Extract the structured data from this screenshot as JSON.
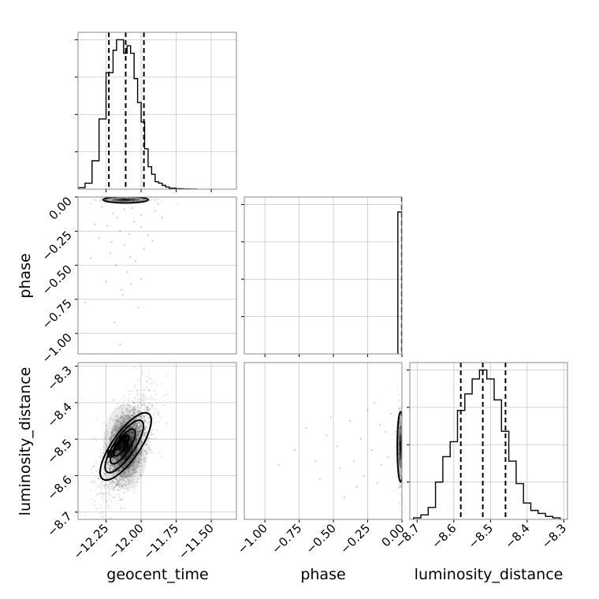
{
  "chart_data": {
    "type": "corner",
    "parameters": [
      "geocent_time",
      "phase",
      "luminosity_distance"
    ],
    "grid": true,
    "quantile_lines": "dashed",
    "panels": [
      {
        "id": "hist-geocent_time",
        "kind": "histogram",
        "x_param": "geocent_time",
        "xlim": [
          -12.45,
          -11.32
        ],
        "ylim": [
          0,
          1.05
        ],
        "bin_edges": [
          -12.45,
          -12.4,
          -12.35,
          -12.3,
          -12.25,
          -12.2,
          -12.175,
          -12.15,
          -12.125,
          -12.1,
          -12.075,
          -12.05,
          -12.025,
          -12.0,
          -11.975,
          -11.95,
          -11.925,
          -11.9,
          -11.875,
          -11.85,
          -11.825,
          -11.8,
          -11.75,
          -11.7,
          -11.65,
          -11.6
        ],
        "counts": [
          0.01,
          0.04,
          0.19,
          0.47,
          0.78,
          0.93,
          1.0,
          1.0,
          0.91,
          0.96,
          0.91,
          0.74,
          0.58,
          0.45,
          0.27,
          0.15,
          0.1,
          0.05,
          0.04,
          0.025,
          0.015,
          0.007,
          0.003,
          0.001,
          0.0
        ],
        "quantiles": [
          -12.23,
          -12.11,
          -11.98
        ],
        "xticks": [
          -12.25,
          -12.0,
          -11.75,
          -11.5
        ]
      },
      {
        "id": "hist-phase",
        "kind": "histogram",
        "x_param": "phase",
        "xlim": [
          -1.15,
          0.0
        ],
        "ylim": [
          0,
          1.05
        ],
        "bin_edges": [
          -0.03,
          0.0
        ],
        "counts": [
          0.95
        ],
        "quantiles": [
          -0.001,
          0.0
        ],
        "xticks": [
          -1.0,
          -0.75,
          -0.5,
          -0.25,
          0.0
        ],
        "xtick_labels": [
          "−1.00",
          "−0.75",
          "−0.50",
          "−0.25",
          "0.00"
        ]
      },
      {
        "id": "hist-luminosity_distance",
        "kind": "histogram",
        "x_param": "luminosity_distance",
        "xlim": [
          -8.72,
          -8.29
        ],
        "ylim": [
          0,
          1.05
        ],
        "bin_edges": [
          -8.71,
          -8.69,
          -8.67,
          -8.65,
          -8.63,
          -8.61,
          -8.59,
          -8.57,
          -8.55,
          -8.53,
          -8.51,
          -8.49,
          -8.47,
          -8.45,
          -8.43,
          -8.41,
          -8.39,
          -8.37,
          -8.35,
          -8.33,
          -8.31
        ],
        "counts": [
          0.01,
          0.03,
          0.08,
          0.25,
          0.42,
          0.52,
          0.73,
          0.84,
          0.94,
          1.0,
          0.94,
          0.8,
          0.59,
          0.39,
          0.24,
          0.11,
          0.06,
          0.04,
          0.02,
          0.01
        ],
        "quantiles": [
          -8.581,
          -8.521,
          -8.459
        ],
        "xticks": [
          -8.7,
          -8.6,
          -8.5,
          -8.4,
          -8.3
        ],
        "xtick_labels": [
          "−8.7",
          "−8.6",
          "−8.5",
          "−8.4",
          "−8.3"
        ]
      },
      {
        "id": "scatter-geocent_time-phase",
        "kind": "2d_density",
        "x_param": "geocent_time",
        "y_param": "phase",
        "xlim": [
          -12.45,
          -11.32
        ],
        "ylim": [
          -1.15,
          0.0
        ],
        "yticks": [
          0.0,
          -0.25,
          -0.5,
          -0.75,
          -1.0
        ],
        "ytick_labels": [
          "0.00",
          "−0.25",
          "−0.50",
          "−0.75",
          "−1.00"
        ],
        "core": {
          "x": -12.11,
          "y": -0.02,
          "sx": 0.1,
          "sy": 0.012
        },
        "sparse_points": [
          [
            -12.2,
            -0.12
          ],
          [
            -12.05,
            -0.18
          ],
          [
            -12.15,
            -0.25
          ],
          [
            -12.3,
            -0.3
          ],
          [
            -12.0,
            -0.22
          ],
          [
            -11.95,
            -0.28
          ],
          [
            -12.12,
            -0.35
          ],
          [
            -12.22,
            -0.41
          ],
          [
            -12.08,
            -0.44
          ],
          [
            -11.9,
            -0.1
          ],
          [
            -12.18,
            -0.5
          ],
          [
            -12.1,
            -0.55
          ],
          [
            -12.0,
            -0.6
          ],
          [
            -12.25,
            -0.62
          ],
          [
            -12.14,
            -0.68
          ],
          [
            -12.4,
            -0.77
          ],
          [
            -12.02,
            -0.81
          ],
          [
            -12.19,
            -0.92
          ],
          [
            -12.15,
            -1.08
          ],
          [
            -12.33,
            -0.2
          ],
          [
            -12.06,
            -0.08
          ],
          [
            -11.85,
            -0.15
          ],
          [
            -12.28,
            -0.07
          ],
          [
            -11.98,
            -0.38
          ],
          [
            -12.04,
            -0.47
          ],
          [
            -12.36,
            -0.45
          ],
          [
            -12.17,
            -0.15
          ],
          [
            -11.92,
            -0.32
          ],
          [
            -12.09,
            -0.27
          ],
          [
            -12.24,
            -0.21
          ],
          [
            -12.12,
            -0.09
          ],
          [
            -11.88,
            -0.05
          ],
          [
            -12.0,
            -0.13
          ],
          [
            -12.21,
            -0.33
          ],
          [
            -12.13,
            -0.72
          ],
          [
            -12.07,
            -0.64
          ]
        ]
      },
      {
        "id": "scatter-geocent_time-luminosity_distance",
        "kind": "2d_density",
        "x_param": "geocent_time",
        "y_param": "luminosity_distance",
        "xlim": [
          -12.45,
          -11.32
        ],
        "ylim": [
          -8.72,
          -8.29
        ],
        "xticks": [
          -12.25,
          -12.0,
          -11.75,
          -11.5
        ],
        "xtick_labels": [
          "−12.25",
          "−12.00",
          "−11.75",
          "−11.50"
        ],
        "yticks": [
          -8.3,
          -8.4,
          -8.5,
          -8.6,
          -8.7
        ],
        "ytick_labels": [
          "−8.3",
          "−8.4",
          "−8.5",
          "−8.6",
          "−8.7"
        ],
        "core": {
          "x": -12.11,
          "y": -8.521,
          "sx": 0.085,
          "sy": 0.062,
          "rho": 0.55
        },
        "contour_levels": [
          {
            "x": -12.14,
            "y": -8.518,
            "a": 0.085,
            "b": 0.027,
            "angle": -57
          },
          {
            "x": -12.13,
            "y": -8.52,
            "a": 0.145,
            "b": 0.048,
            "angle": -57
          },
          {
            "x": -12.12,
            "y": -8.52,
            "a": 0.22,
            "b": 0.072,
            "angle": -56
          },
          {
            "x": -12.11,
            "y": -8.52,
            "a": 0.285,
            "b": 0.098,
            "angle": -55
          }
        ],
        "peak_blocks": [
          [
            -12.17,
            -8.52
          ],
          [
            -12.215,
            -8.54
          ],
          [
            -12.13,
            -8.5
          ]
        ]
      },
      {
        "id": "scatter-phase-luminosity_distance",
        "kind": "2d_density",
        "x_param": "phase",
        "y_param": "luminosity_distance",
        "xlim": [
          -1.15,
          0.0
        ],
        "ylim": [
          -8.72,
          -8.29
        ],
        "xticks": [
          -1.0,
          -0.75,
          -0.5,
          -0.25,
          0.0
        ],
        "xtick_labels": [
          "−1.00",
          "−0.75",
          "−0.50",
          "−0.25",
          "0.00"
        ],
        "core": {
          "x": -0.01,
          "y": -8.521,
          "sx": 0.015,
          "sy": 0.06
        },
        "sparse_points": [
          [
            -0.25,
            -8.42
          ],
          [
            -0.35,
            -8.56
          ],
          [
            -0.18,
            -8.62
          ],
          [
            -0.6,
            -8.61
          ],
          [
            -0.52,
            -8.44
          ],
          [
            -0.3,
            -8.5
          ],
          [
            -0.12,
            -8.48
          ],
          [
            -0.42,
            -8.66
          ],
          [
            -0.7,
            -8.47
          ],
          [
            -0.22,
            -8.53
          ],
          [
            -0.9,
            -8.57
          ],
          [
            -0.47,
            -8.52
          ],
          [
            -0.15,
            -8.57
          ],
          [
            -0.28,
            -8.6
          ],
          [
            -0.55,
            -8.49
          ],
          [
            -0.38,
            -8.45
          ],
          [
            -0.1,
            -8.55
          ],
          [
            -0.78,
            -8.53
          ],
          [
            -0.2,
            -8.4
          ],
          [
            -0.63,
            -8.56
          ],
          [
            -0.08,
            -8.43
          ],
          [
            -0.33,
            -8.63
          ],
          [
            -0.45,
            -8.58
          ],
          [
            -0.16,
            -8.46
          ]
        ]
      }
    ],
    "xlabels": [
      "geocent_time",
      "phase",
      "luminosity_distance"
    ],
    "ylabels": [
      "phase",
      "luminosity_distance"
    ]
  }
}
